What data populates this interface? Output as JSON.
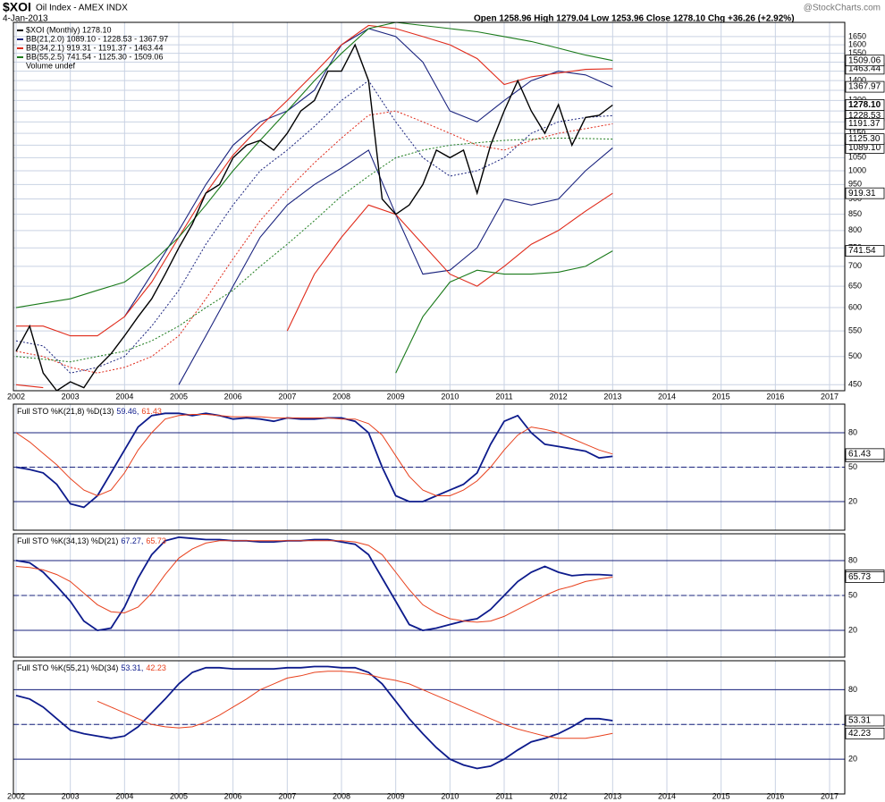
{
  "chart_data": [
    {
      "type": "line",
      "title": "$XOI",
      "subtitle": "Oil Index - AMEX INDX",
      "date": "4-Jan-2013",
      "quote": "Open 1258.96 High 1279.04 Low 1253.96 Close 1278.10 Chg +36.26 (+2.92%)",
      "credit": "@StockCharts.com",
      "log_scale": true,
      "grid": true,
      "note": "Volume undef",
      "xlim": [
        2002,
        2017
      ],
      "xticks": [
        2002,
        2003,
        2004,
        2005,
        2006,
        2007,
        2008,
        2009,
        2010,
        2011,
        2012,
        2013,
        2014,
        2015,
        2016,
        2017
      ],
      "ylim": [
        440,
        1740
      ],
      "yticks": [
        450,
        500,
        550,
        600,
        650,
        700,
        750,
        800,
        850,
        900,
        950,
        1000,
        1050,
        1100,
        1150,
        1200,
        1250,
        1300,
        1350,
        1400,
        1450,
        1500,
        1550,
        1600,
        1650
      ],
      "x": [
        2002,
        2002.25,
        2002.5,
        2002.75,
        2003,
        2003.25,
        2003.5,
        2003.75,
        2004,
        2004.25,
        2004.5,
        2004.75,
        2005,
        2005.25,
        2005.5,
        2005.75,
        2006,
        2006.25,
        2006.5,
        2006.75,
        2007,
        2007.25,
        2007.5,
        2007.75,
        2008,
        2008.25,
        2008.5,
        2008.75,
        2009,
        2009.25,
        2009.5,
        2009.75,
        2010,
        2010.25,
        2010.5,
        2010.75,
        2011,
        2011.25,
        2011.5,
        2011.75,
        2012,
        2012.25,
        2012.5,
        2012.75,
        2013
      ],
      "series": [
        {
          "name": "$XOI (Monthly) 1278.10",
          "color": "#000000",
          "value_label": "1278.10",
          "values": [
            510,
            560,
            470,
            440,
            455,
            445,
            480,
            505,
            540,
            580,
            620,
            680,
            750,
            820,
            920,
            950,
            1050,
            1100,
            1120,
            1080,
            1150,
            1250,
            1300,
            1450,
            1450,
            1600,
            1400,
            900,
            850,
            880,
            950,
            1080,
            1050,
            1080,
            920,
            1100,
            1250,
            1400,
            1250,
            1150,
            1280,
            1100,
            1220,
            1230,
            1278.1
          ]
        }
      ],
      "bands": [
        {
          "name": "BB(21,2.0) 1089.10 - 1228.53 - 1367.97",
          "color": "#1a237e",
          "x": [
            2002,
            2002.5,
            2003,
            2003.5,
            2004,
            2004.5,
            2005,
            2005.5,
            2006,
            2006.5,
            2007,
            2007.5,
            2008,
            2008.5,
            2009,
            2009.5,
            2010,
            2010.5,
            2011,
            2011.5,
            2012,
            2012.5,
            2013
          ],
          "upper": [
            null,
            null,
            null,
            null,
            580,
            680,
            800,
            950,
            1100,
            1200,
            1250,
            1350,
            1600,
            1700,
            1650,
            1500,
            1250,
            1200,
            1300,
            1400,
            1450,
            1430,
            1367.97
          ],
          "middle": [
            530,
            520,
            470,
            480,
            500,
            560,
            640,
            760,
            880,
            1000,
            1080,
            1180,
            1300,
            1400,
            1200,
            1050,
            980,
            1000,
            1050,
            1150,
            1200,
            1220,
            1228.53
          ],
          "lower": [
            null,
            null,
            null,
            null,
            null,
            null,
            450,
            540,
            650,
            780,
            880,
            950,
            1010,
            1080,
            850,
            680,
            690,
            750,
            900,
            880,
            900,
            1000,
            1089.1
          ],
          "lower_label": "1089.10"
        },
        {
          "name": "BB(34,2.1) 919.31 - 1191.37 - 1463.44",
          "color": "#e02a1a",
          "x": [
            2002,
            2002.5,
            2003,
            2003.5,
            2004,
            2004.5,
            2005,
            2005.5,
            2006,
            2006.5,
            2007,
            2007.5,
            2008,
            2008.5,
            2009,
            2009.5,
            2010,
            2010.5,
            2011,
            2011.5,
            2012,
            2012.5,
            2013
          ],
          "upper": [
            560,
            560,
            540,
            540,
            580,
            660,
            780,
            920,
            1060,
            1180,
            1300,
            1440,
            1600,
            1720,
            1700,
            1650,
            1600,
            1520,
            1380,
            1420,
            1440,
            1460,
            1463.44
          ],
          "middle": [
            510,
            500,
            480,
            470,
            480,
            500,
            540,
            620,
            720,
            830,
            930,
            1030,
            1130,
            1230,
            1250,
            1200,
            1150,
            1100,
            1080,
            1120,
            1150,
            1170,
            1191.37
          ],
          "lower": [
            450,
            445,
            null,
            null,
            null,
            null,
            null,
            null,
            null,
            null,
            550,
            680,
            780,
            880,
            850,
            760,
            680,
            650,
            700,
            760,
            800,
            860,
            919.31
          ]
        },
        {
          "name": "BB(55,2.5) 741.54 - 1125.30 - 1509.06",
          "color": "#1a7a1a",
          "x": [
            2002,
            2002.5,
            2003,
            2003.5,
            2004,
            2004.5,
            2005,
            2005.5,
            2006,
            2006.5,
            2007,
            2007.5,
            2008,
            2008.5,
            2009,
            2009.5,
            2010,
            2010.5,
            2011,
            2011.5,
            2012,
            2012.5,
            2013
          ],
          "upper": [
            600,
            610,
            620,
            640,
            660,
            710,
            780,
            880,
            1000,
            1120,
            1250,
            1400,
            1550,
            1700,
            1740,
            1720,
            1700,
            1680,
            1650,
            1620,
            1580,
            1540,
            1509.06
          ],
          "middle": [
            500,
            495,
            490,
            500,
            510,
            530,
            560,
            600,
            640,
            700,
            760,
            830,
            910,
            980,
            1050,
            1080,
            1100,
            1110,
            1120,
            1125,
            1130,
            1128,
            1125.3
          ],
          "lower": [
            null,
            null,
            null,
            null,
            null,
            null,
            null,
            null,
            null,
            null,
            null,
            null,
            null,
            null,
            470,
            580,
            660,
            690,
            680,
            680,
            685,
            700,
            741.54
          ],
          "middle_label": "1125.30"
        }
      ]
    },
    {
      "type": "line",
      "label": "Full STO %K(21,8) %D(13)",
      "grid": true,
      "xlim": [
        2002,
        2017
      ],
      "ylim": [
        -5,
        105
      ],
      "yticks": [
        20,
        50,
        80
      ],
      "x": [
        2002,
        2002.25,
        2002.5,
        2002.75,
        2003,
        2003.25,
        2003.5,
        2003.75,
        2004,
        2004.25,
        2004.5,
        2004.75,
        2005,
        2005.25,
        2005.5,
        2005.75,
        2006,
        2006.25,
        2006.5,
        2006.75,
        2007,
        2007.25,
        2007.5,
        2007.75,
        2008,
        2008.25,
        2008.5,
        2008.75,
        2009,
        2009.25,
        2009.5,
        2009.75,
        2010,
        2010.25,
        2010.5,
        2010.75,
        2011,
        2011.25,
        2011.5,
        2011.75,
        2012,
        2012.25,
        2012.5,
        2012.75,
        2013
      ],
      "series": [
        {
          "legend_label": "59.46,",
          "color": "#0d1b8c",
          "values": [
            50,
            48,
            45,
            35,
            18,
            15,
            25,
            45,
            65,
            85,
            95,
            97,
            97,
            95,
            97,
            95,
            92,
            93,
            92,
            90,
            93,
            92,
            92,
            93,
            93,
            90,
            80,
            50,
            25,
            20,
            20,
            25,
            30,
            35,
            45,
            70,
            90,
            95,
            80,
            70,
            68,
            66,
            64,
            58,
            59.46
          ]
        },
        {
          "legend_label": "61.43",
          "color": "#e8401c",
          "values": [
            80,
            72,
            62,
            52,
            40,
            30,
            25,
            30,
            45,
            65,
            80,
            92,
            95,
            96,
            96,
            95,
            94,
            94,
            94,
            93,
            93,
            93,
            93,
            93,
            92,
            92,
            88,
            78,
            60,
            42,
            30,
            25,
            25,
            30,
            38,
            50,
            65,
            78,
            85,
            83,
            80,
            75,
            70,
            65,
            61.43
          ]
        }
      ]
    },
    {
      "type": "line",
      "label": "Full STO %K(34,13) %D(21)",
      "grid": true,
      "xlim": [
        2002,
        2017
      ],
      "ylim": [
        -3,
        103
      ],
      "yticks": [
        20,
        50,
        80
      ],
      "x": [
        2002,
        2002.25,
        2002.5,
        2002.75,
        2003,
        2003.25,
        2003.5,
        2003.75,
        2004,
        2004.25,
        2004.5,
        2004.75,
        2005,
        2005.25,
        2005.5,
        2005.75,
        2006,
        2006.25,
        2006.5,
        2006.75,
        2007,
        2007.25,
        2007.5,
        2007.75,
        2008,
        2008.25,
        2008.5,
        2008.75,
        2009,
        2009.25,
        2009.5,
        2009.75,
        2010,
        2010.25,
        2010.5,
        2010.75,
        2011,
        2011.25,
        2011.5,
        2011.75,
        2012,
        2012.25,
        2012.5,
        2012.75,
        2013
      ],
      "series": [
        {
          "legend_label": "67.27,",
          "color": "#0d1b8c",
          "values": [
            80,
            78,
            70,
            58,
            45,
            28,
            20,
            22,
            40,
            65,
            85,
            97,
            100,
            99,
            98,
            98,
            97,
            97,
            96,
            96,
            97,
            97,
            98,
            98,
            96,
            94,
            85,
            65,
            45,
            25,
            20,
            22,
            25,
            28,
            30,
            38,
            50,
            62,
            70,
            75,
            70,
            67,
            68,
            68,
            67.27
          ]
        },
        {
          "legend_label": "65.73",
          "color": "#e8401c",
          "values": [
            75,
            74,
            72,
            68,
            62,
            52,
            42,
            36,
            35,
            40,
            52,
            68,
            82,
            90,
            95,
            97,
            97,
            97,
            97,
            97,
            97,
            97,
            97,
            97,
            97,
            96,
            93,
            85,
            70,
            55,
            42,
            35,
            30,
            28,
            27,
            28,
            32,
            38,
            44,
            50,
            55,
            58,
            62,
            64,
            65.73
          ]
        }
      ]
    },
    {
      "type": "line",
      "label": "Full STO %K(55,21) %D(34)",
      "grid": true,
      "xlim": [
        2002,
        2017
      ],
      "ylim": [
        -10,
        105
      ],
      "yticks": [
        20,
        50,
        80
      ],
      "xticks": [
        2002,
        2003,
        2004,
        2005,
        2006,
        2007,
        2008,
        2009,
        2010,
        2011,
        2012,
        2013,
        2014,
        2015,
        2016,
        2017
      ],
      "x": [
        2002,
        2002.25,
        2002.5,
        2002.75,
        2003,
        2003.25,
        2003.5,
        2003.75,
        2004,
        2004.25,
        2004.5,
        2004.75,
        2005,
        2005.25,
        2005.5,
        2005.75,
        2006,
        2006.25,
        2006.5,
        2006.75,
        2007,
        2007.25,
        2007.5,
        2007.75,
        2008,
        2008.25,
        2008.5,
        2008.75,
        2009,
        2009.25,
        2009.5,
        2009.75,
        2010,
        2010.25,
        2010.5,
        2010.75,
        2011,
        2011.25,
        2011.5,
        2011.75,
        2012,
        2012.25,
        2012.5,
        2012.75,
        2013
      ],
      "series": [
        {
          "legend_label": "53.31,",
          "color": "#0d1b8c",
          "values": [
            75,
            72,
            65,
            55,
            45,
            42,
            40,
            38,
            40,
            48,
            60,
            72,
            85,
            95,
            99,
            99,
            98,
            98,
            98,
            98,
            99,
            99,
            100,
            100,
            99,
            99,
            95,
            85,
            70,
            55,
            42,
            30,
            20,
            15,
            12,
            14,
            20,
            28,
            35,
            38,
            42,
            48,
            55,
            55,
            53.31
          ]
        },
        {
          "legend_label": "42.23",
          "color": "#e8401c",
          "values": [
            null,
            null,
            null,
            null,
            null,
            null,
            70,
            65,
            60,
            55,
            50,
            48,
            47,
            48,
            52,
            58,
            65,
            72,
            80,
            85,
            90,
            92,
            95,
            96,
            96,
            95,
            93,
            90,
            88,
            85,
            80,
            75,
            70,
            65,
            60,
            55,
            50,
            46,
            43,
            40,
            38,
            38,
            38,
            40,
            42.23
          ]
        }
      ]
    }
  ]
}
